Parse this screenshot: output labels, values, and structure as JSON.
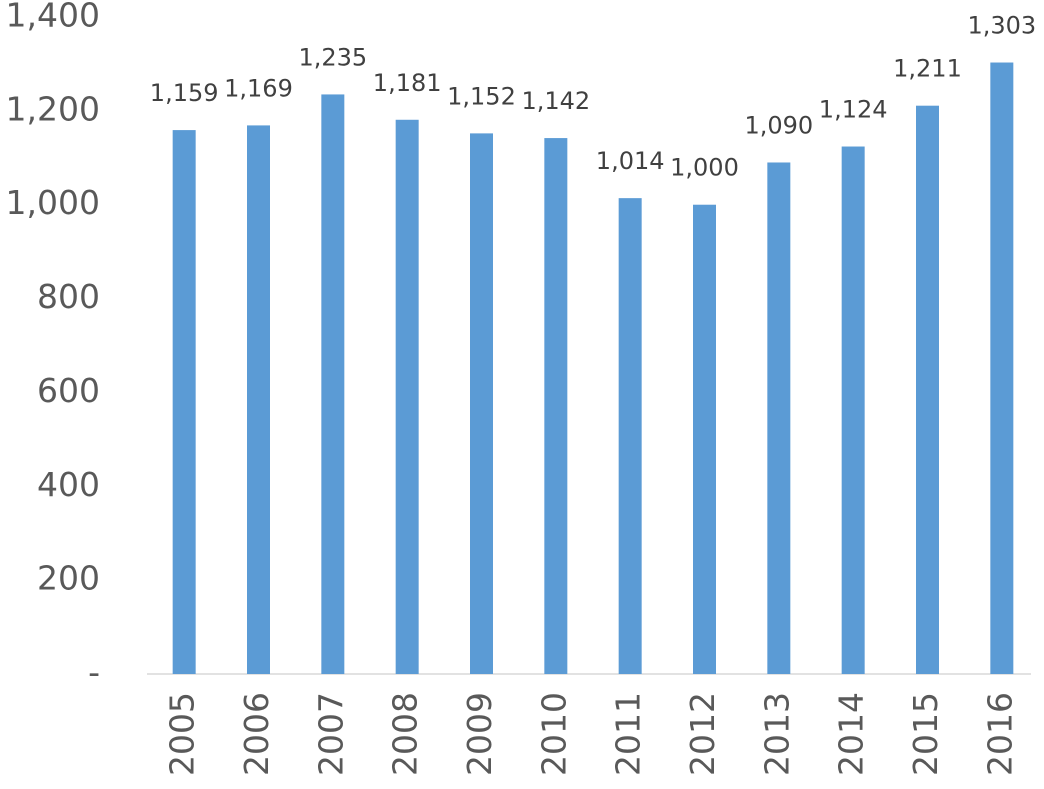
{
  "chart_data": {
    "type": "bar",
    "categories": [
      "2005",
      "2006",
      "2007",
      "2008",
      "2009",
      "2010",
      "2011",
      "2012",
      "2013",
      "2014",
      "2015",
      "2016"
    ],
    "values": [
      1159,
      1169,
      1235,
      1181,
      1152,
      1142,
      1014,
      1000,
      1090,
      1124,
      1211,
      1303
    ],
    "value_labels": [
      "1,159",
      "1,169",
      "1,235",
      "1,181",
      "1,152",
      "1,142",
      "1,014",
      "1,000",
      "1,090",
      "1,124",
      "1,211",
      "1,303"
    ],
    "color": "#5b9bd5",
    "ylim": [
      0,
      1400
    ],
    "yticks": [
      {
        "value": 0,
        "label": "-"
      },
      200,
      400,
      600,
      800,
      {
        "value": 1000,
        "label": "1,000"
      },
      {
        "value": 1200,
        "label": "1,200"
      },
      {
        "value": 1400,
        "label": "1,400"
      }
    ],
    "grid": false
  }
}
